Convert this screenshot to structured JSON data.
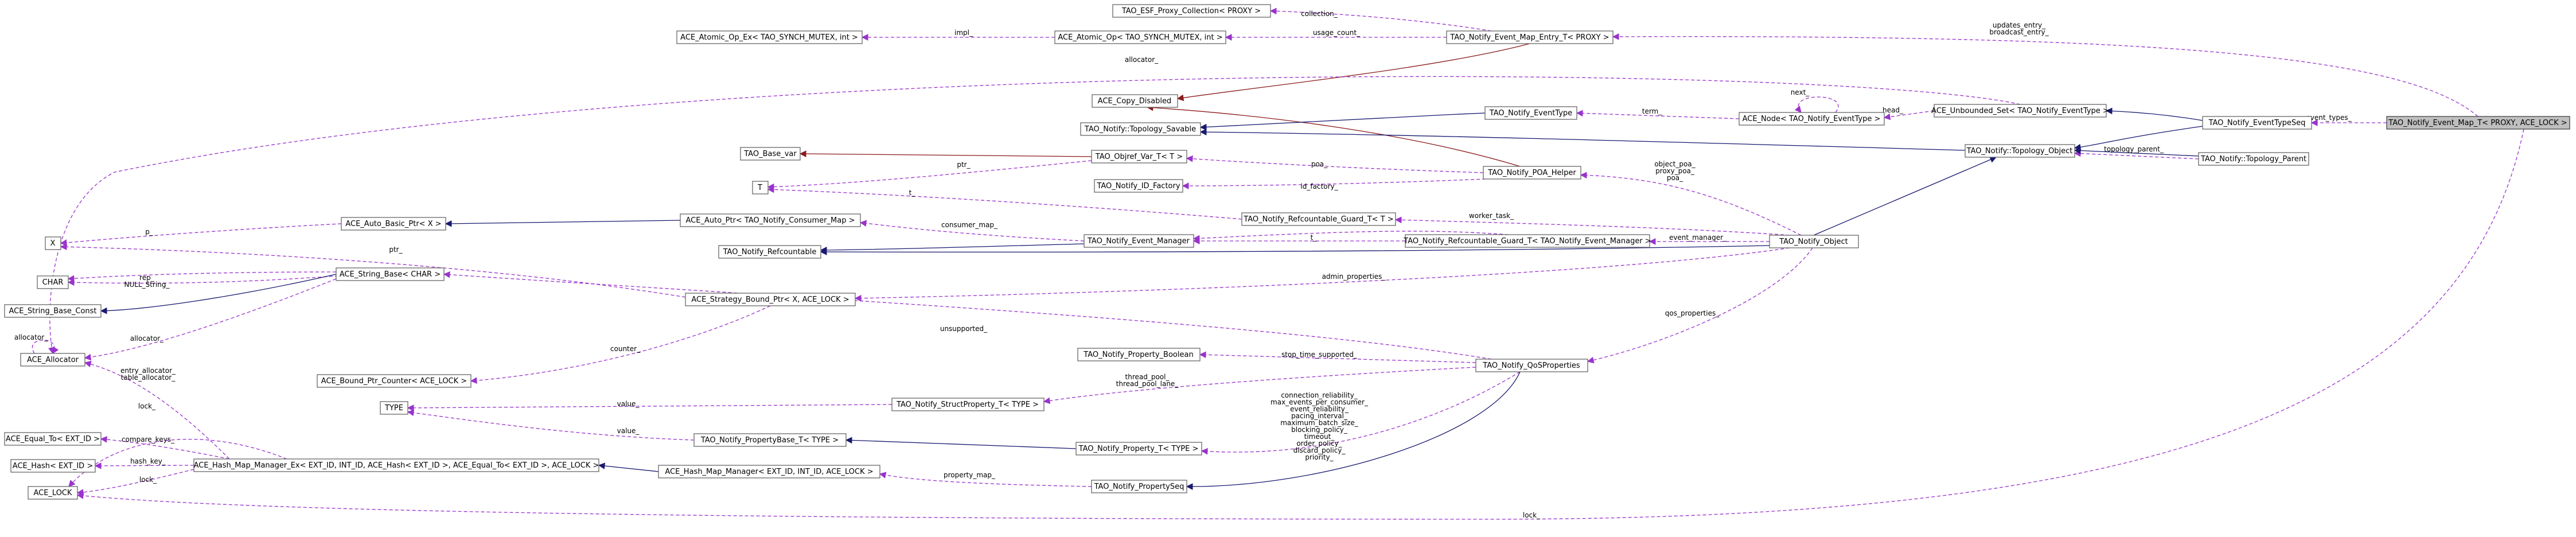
{
  "nodes": {
    "event_map_lock": "TAO_Notify_Event_Map_T< PROXY, ACE_LOCK >",
    "event_map_entry": "TAO_Notify_Event_Map_Entry_T< PROXY >",
    "esf_proxy_collection": "TAO_ESF_Proxy_Collection< PROXY >",
    "atomic_op": "ACE_Atomic_Op< TAO_SYNCH_MUTEX, int >",
    "atomic_op_ex": "ACE_Atomic_Op_Ex< TAO_SYNCH_MUTEX, int >",
    "copy_disabled": "ACE_Copy_Disabled",
    "topology_savable": "TAO_Notify::Topology_Savable",
    "event_type": "TAO_Notify_EventType",
    "node_event_type": "ACE_Node< TAO_Notify_EventType >",
    "unbounded_set": "ACE_Unbounded_Set< TAO_Notify_EventType >",
    "event_type_seq": "TAO_Notify_EventTypeSeq",
    "topology_object": "TAO_Notify::Topology_Object",
    "topology_parent": "TAO_Notify::Topology_Parent",
    "poa_helper": "TAO_Notify_POA_Helper",
    "objref_var": "TAO_Objref_Var_T< T >",
    "base_var": "TAO_Base_var",
    "t_param": "T",
    "id_factory": "TAO_Notify_ID_Factory",
    "refcountable_guard": "TAO_Notify_Refcountable_Guard_T< T >",
    "auto_basic_ptr": "ACE_Auto_Basic_Ptr< X >",
    "auto_ptr_consumer_map": "ACE_Auto_Ptr< TAO_Notify_Consumer_Map >",
    "x_param": "X",
    "event_manager": "TAO_Notify_Event_Manager",
    "refcountable": "TAO_Notify_Refcountable",
    "refcountable_guard_em": "TAO_Notify_Refcountable_Guard_T< TAO_Notify_Event_Manager >",
    "notify_object": "TAO_Notify_Object",
    "char_param": "CHAR",
    "string_base_const": "ACE_String_Base_Const",
    "string_base_char": "ACE_String_Base< CHAR >",
    "strategy_bound_ptr": "ACE_Strategy_Bound_Ptr< X, ACE_LOCK >",
    "allocator": "ACE_Allocator",
    "bound_ptr_counter": "ACE_Bound_Ptr_Counter< ACE_LOCK >",
    "property_boolean": "TAO_Notify_Property_Boolean",
    "qos_properties": "TAO_Notify_QoSProperties",
    "struct_property": "TAO_Notify_StructProperty_T< TYPE >",
    "type_param": "TYPE",
    "equal_to": "ACE_Equal_To< EXT_ID >",
    "property_base": "TAO_Notify_PropertyBase_T< TYPE >",
    "property_t": "TAO_Notify_Property_T< TYPE >",
    "hash_ext": "ACE_Hash< EXT_ID >",
    "hash_map_manager_ex": "ACE_Hash_Map_Manager_Ex< EXT_ID, INT_ID, ACE_Hash< EXT_ID >, ACE_Equal_To< EXT_ID >, ACE_LOCK >",
    "hash_map_manager": "ACE_Hash_Map_Manager< EXT_ID, INT_ID, ACE_LOCK >",
    "property_seq": "TAO_Notify_PropertySeq",
    "ace_lock": "ACE_LOCK"
  },
  "edge_labels": {
    "collection": "collection_",
    "impl": "impl_",
    "usage_count": "usage_count_",
    "updates_entry": "updates_entry_",
    "broadcast_entry": "broadcast_entry_",
    "allocator": "allocator_",
    "next": "next_",
    "term": "term_",
    "head": "head_",
    "event_types": "event_types_",
    "topology_parent": "topology_parent_",
    "ptr": "ptr_",
    "poa": "poa_",
    "object_poa": "object_poa_",
    "proxy_poa": "proxy_poa_",
    "poa2": "poa_",
    "id_factory": "id_factory_",
    "t": "t_",
    "worker_task": "worker_task_",
    "p": "p_",
    "consumer_map": "consumer_map_",
    "ptr2": "ptr_",
    "t2": "t_",
    "event_manager": "event_manager_",
    "rep": "rep_",
    "null_string": "NULL_String_",
    "allocator2": "allocator_",
    "allocator3": "allocator_",
    "admin_properties": "admin_properties_",
    "unsupported": "unsupported_",
    "counter": "counter_",
    "qos_properties": "qos_properties_",
    "stop_time_supported": "stop_time_supported_",
    "thread_pool": "thread_pool_",
    "thread_pool_lane": "thread_pool_lane_",
    "entry_allocator": "entry_allocator_",
    "table_allocator": "table_allocator_",
    "value": "value_",
    "lock": "lock_",
    "value2": "value_",
    "qos_list": [
      "connection_reliability_",
      "max_events_per_consumer_",
      "event_reliability_",
      "pacing_interval_",
      "maximum_batch_size_",
      "blocking_policy_",
      "timeout_",
      "order_policy_",
      "discard_policy_",
      "priority_"
    ],
    "compare_keys": "compare_keys_",
    "hash_key": "hash_key_",
    "lock2": "lock_",
    "property_map": "property_map_",
    "lock3": "lock_"
  },
  "colors": {
    "inheritance": "#191970",
    "usage": "#9a32cd",
    "template": "#ffa500",
    "private_inheritance": "#8b1a1a",
    "node_border": "#666666",
    "highlight_fill": "#bfbfbf"
  }
}
